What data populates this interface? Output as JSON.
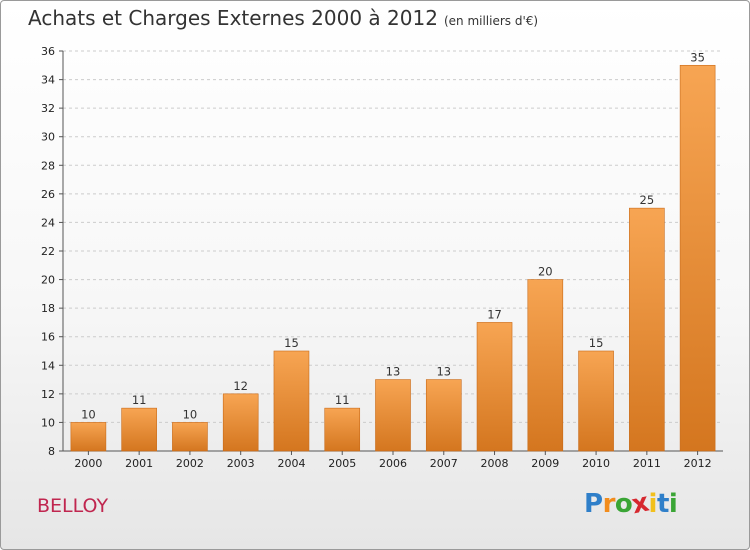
{
  "header": {
    "title": "Achats et Charges Externes 2000 à 2012",
    "subtitle": "(en milliers d'€)"
  },
  "footer": {
    "city": "BELLOY",
    "logo": {
      "letters": [
        "P",
        "r",
        "o",
        "x",
        "i",
        "t",
        "i"
      ],
      "colors": [
        "#2f7fc9",
        "#f28c1c",
        "#3aa535",
        "#d6282f",
        "#f2c01c",
        "#2f7fc9",
        "#3aa535"
      ]
    }
  },
  "colors": {
    "bar_light": "#f7a553",
    "bar_dark": "#d4761f",
    "grid": "#cccccc"
  },
  "chart_data": {
    "type": "bar",
    "categories": [
      "2000",
      "2001",
      "2002",
      "2003",
      "2004",
      "2005",
      "2006",
      "2007",
      "2008",
      "2009",
      "2010",
      "2011",
      "2012"
    ],
    "values": [
      10,
      11,
      10,
      12,
      15,
      11,
      13,
      13,
      17,
      20,
      15,
      25,
      35
    ],
    "ylim": [
      8,
      36
    ],
    "yticks": [
      "8",
      "10",
      "12",
      "14",
      "16",
      "18",
      "20",
      "22",
      "24",
      "26",
      "28",
      "30",
      "32",
      "34",
      "36"
    ],
    "grid": "horizontal-dashed"
  }
}
